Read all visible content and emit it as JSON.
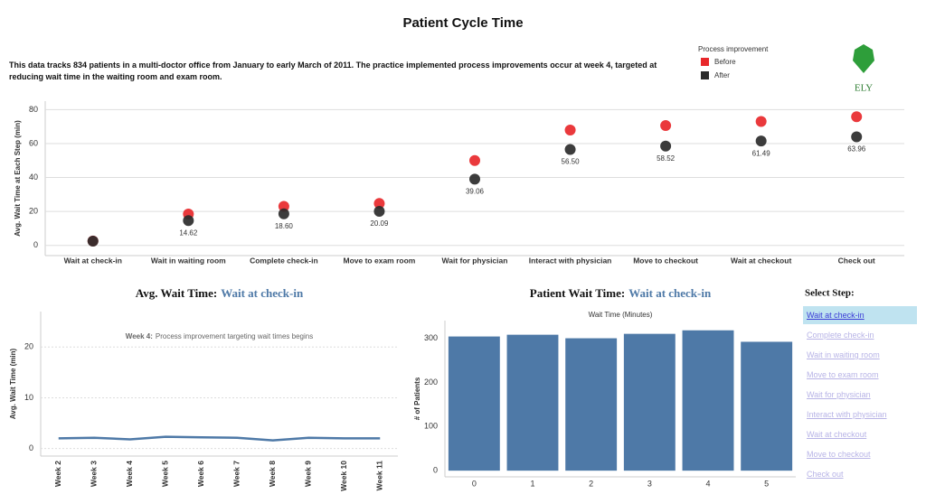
{
  "title": "Patient Cycle Time",
  "description": "This data tracks 834 patients in a multi-doctor office from January to early March of 2011. The practice implemented process improvements occur at week 4, targeted at reducing wait time in the waiting room and exam room.",
  "legend_title": "Process improvement",
  "logo": "ELY",
  "select_step": {
    "title": "Select Step:",
    "items": [
      "Wait at check-in",
      "Complete check-in",
      "Wait in waiting room",
      "Move to exam room",
      "Wait for physician",
      "Interact with physician",
      "Wait at checkout",
      "Move to checkout",
      "Check out"
    ],
    "selected": 0
  },
  "chart_data": [
    {
      "type": "dot",
      "y_label": "Avg. Wait Time at Each Step (min)",
      "categories": [
        "Wait at check-in",
        "Wait in waiting room",
        "Complete check-in",
        "Move to exam room",
        "Wait for physician",
        "Interact with physician",
        "Move to checkout",
        "Wait at checkout",
        "Check out"
      ],
      "series": [
        {
          "name": "Before",
          "color": "#e8282b",
          "values": [
            2.6,
            18.5,
            23,
            24.7,
            50,
            68,
            70.6,
            73,
            75.8
          ]
        },
        {
          "name": "After",
          "color": "#2b2b2b",
          "values": [
            2.5,
            14.62,
            18.6,
            20.09,
            39.06,
            56.5,
            58.52,
            61.49,
            63.96
          ],
          "value_labels": [
            null,
            "14.62",
            "18.60",
            "20.09",
            "39.06",
            "56.50",
            "58.52",
            "61.49",
            "63.96"
          ]
        }
      ],
      "ylim": [
        -6,
        85
      ],
      "yticks": [
        0,
        20,
        40,
        60,
        80
      ],
      "grid": true
    },
    {
      "type": "line",
      "title": "Avg. Wait Time:",
      "title_step": "Wait at check-in",
      "y_label": "Avg. Wait Time (min)",
      "annotation_label": "Week 4:",
      "annotation": "Process improvement targeting wait times begins",
      "categories": [
        "Week 2",
        "Week 3",
        "Week 4",
        "Week 5",
        "Week 6",
        "Week 7",
        "Week 8",
        "Week 9",
        "Week 10",
        "Week 11"
      ],
      "values": [
        2.0,
        2.1,
        1.8,
        2.3,
        2.2,
        2.1,
        1.6,
        2.1,
        2.0,
        2.0
      ],
      "color": "#4e79a7",
      "ylim": [
        -1.5,
        27
      ],
      "yticks": [
        0,
        10,
        20
      ],
      "grid": true
    },
    {
      "type": "bar",
      "title": "Patient Wait Time:",
      "title_step": "Wait at check-in",
      "x_label": "Wait Time (Minutes)",
      "y_label": "# of Patients",
      "categories": [
        "0",
        "1",
        "2",
        "3",
        "4",
        "5"
      ],
      "values": [
        304,
        308,
        300,
        310,
        318,
        292
      ],
      "color": "#4e79a7",
      "ylim": [
        -14,
        340
      ],
      "yticks": [
        0,
        100,
        200,
        300
      ],
      "grid": false
    }
  ]
}
